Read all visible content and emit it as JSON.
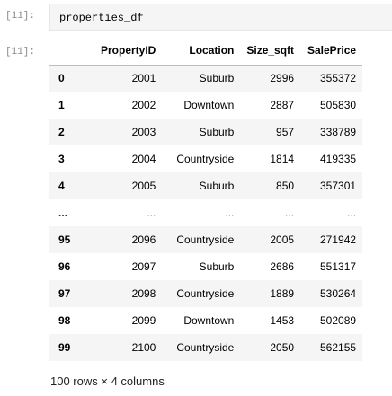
{
  "input_cell": {
    "prompt": "[11]:",
    "code": "properties_df"
  },
  "output_cell": {
    "prompt": "[11]:",
    "columns": [
      "",
      "PropertyID",
      "Location",
      "Size_sqft",
      "SalePrice"
    ],
    "rows": [
      {
        "index": "0",
        "PropertyID": "2001",
        "Location": "Suburb",
        "Size_sqft": "2996",
        "SalePrice": "355372"
      },
      {
        "index": "1",
        "PropertyID": "2002",
        "Location": "Downtown",
        "Size_sqft": "2887",
        "SalePrice": "505830"
      },
      {
        "index": "2",
        "PropertyID": "2003",
        "Location": "Suburb",
        "Size_sqft": "957",
        "SalePrice": "338789"
      },
      {
        "index": "3",
        "PropertyID": "2004",
        "Location": "Countryside",
        "Size_sqft": "1814",
        "SalePrice": "419335"
      },
      {
        "index": "4",
        "PropertyID": "2005",
        "Location": "Suburb",
        "Size_sqft": "850",
        "SalePrice": "357301"
      },
      {
        "index": "...",
        "PropertyID": "...",
        "Location": "...",
        "Size_sqft": "...",
        "SalePrice": "..."
      },
      {
        "index": "95",
        "PropertyID": "2096",
        "Location": "Countryside",
        "Size_sqft": "2005",
        "SalePrice": "271942"
      },
      {
        "index": "96",
        "PropertyID": "2097",
        "Location": "Suburb",
        "Size_sqft": "2686",
        "SalePrice": "551317"
      },
      {
        "index": "97",
        "PropertyID": "2098",
        "Location": "Countryside",
        "Size_sqft": "1889",
        "SalePrice": "530264"
      },
      {
        "index": "98",
        "PropertyID": "2099",
        "Location": "Downtown",
        "Size_sqft": "1453",
        "SalePrice": "502089"
      },
      {
        "index": "99",
        "PropertyID": "2100",
        "Location": "Countryside",
        "Size_sqft": "2050",
        "SalePrice": "562155"
      }
    ],
    "shape_text": "100 rows × 4 columns"
  }
}
